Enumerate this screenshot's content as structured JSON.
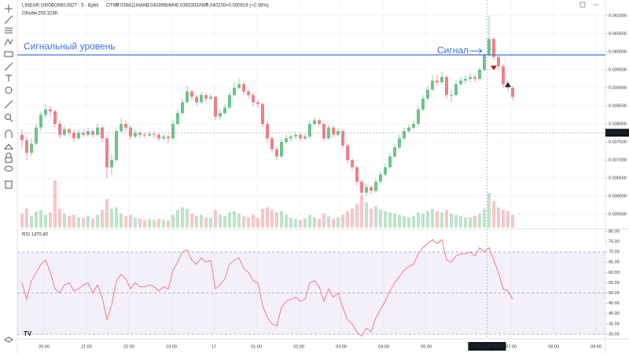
{
  "chart_data": {
    "type": "candlestick",
    "header": {
      "symbol": "LINEAR:1000BONKUSDT · 5 · Bybit",
      "ohlc": [
        {
          "name": "ОТКР",
          "value": 0.039411
        },
        {
          "name": "МАКС",
          "value": 0.040396
        },
        {
          "name": "МИН",
          "value": 0.03933,
          "label": "0.039330"
        },
        {
          "name": "ЗАКР",
          "value": 0.04023,
          "label": "0.040230"
        }
      ],
      "change": "+0.000819 (+2.08%)",
      "volume_name": "Объём",
      "volume_value": "293.324K"
    },
    "up_color": "#6cc38c",
    "down_color": "#ef8088",
    "grid": true,
    "ylim": [
      0.03509,
      0.04143
    ],
    "yticks": [
      {
        "value": 0.041,
        "label": "0.041000"
      },
      {
        "value": 0.0405,
        "label": "0.040500"
      },
      {
        "value": 0.04,
        "label": "0.040000"
      },
      {
        "value": 0.0395,
        "label": "0.039500"
      },
      {
        "value": 0.039,
        "label": "0.039000"
      },
      {
        "value": 0.0385,
        "label": "0.038500"
      },
      {
        "value": 0.038,
        "label": "0.038000"
      },
      {
        "value": 0.0375,
        "label": "0.037500"
      },
      {
        "value": 0.037,
        "label": "0.037000"
      },
      {
        "value": 0.0365,
        "label": "0.036500"
      },
      {
        "value": 0.036,
        "label": "0.036000"
      },
      {
        "value": 0.0355,
        "label": "0.035500"
      }
    ],
    "xlim": [
      22.2,
      853.3
    ],
    "xticks": [
      {
        "value": 60,
        "label": "20:00"
      },
      {
        "value": 120,
        "label": "21:00"
      },
      {
        "value": 180,
        "label": "22:00"
      },
      {
        "value": 240,
        "label": "23:00"
      },
      {
        "value": 300,
        "label": "17"
      },
      {
        "value": 360,
        "label": "01:00"
      },
      {
        "value": 420,
        "label": "02:00"
      },
      {
        "value": 480,
        "label": "03:00"
      },
      {
        "value": 540,
        "label": "04:00"
      },
      {
        "value": 600,
        "label": "05:00"
      },
      {
        "value": 720,
        "label": "07:00"
      },
      {
        "value": 780,
        "label": "08:00"
      },
      {
        "value": 840,
        "label": "09:00"
      }
    ],
    "crosshair": {
      "x": 686,
      "time_label": "17 Июн '25   06:25",
      "price": 0.037756,
      "price_label": "0.037756"
    },
    "signal_level": {
      "value": 0.03991,
      "label": "Сигнальный уровень",
      "color": "#3d6fe0"
    },
    "signal_note": "Сигнал",
    "markers": [
      {
        "index": 100,
        "price": 0.03955,
        "shape": "down",
        "color": "#b71c1c"
      },
      {
        "index": 103,
        "price": 0.03909,
        "shape": "up",
        "color": "#222222"
      }
    ],
    "candles": [
      [
        0.0377,
        0.03785,
        0.03735,
        0.03755
      ],
      [
        0.03755,
        0.03765,
        0.037,
        0.0372
      ],
      [
        0.0372,
        0.0376,
        0.0371,
        0.03745
      ],
      [
        0.03745,
        0.038,
        0.0374,
        0.0379
      ],
      [
        0.0379,
        0.03835,
        0.0378,
        0.03825
      ],
      [
        0.03825,
        0.03855,
        0.03815,
        0.0384
      ],
      [
        0.0384,
        0.0385,
        0.0382,
        0.03835
      ],
      [
        0.03835,
        0.0384,
        0.0379,
        0.038
      ],
      [
        0.038,
        0.0381,
        0.0376,
        0.0377
      ],
      [
        0.0377,
        0.03795,
        0.03765,
        0.03785
      ],
      [
        0.03785,
        0.0379,
        0.03765,
        0.03775
      ],
      [
        0.03775,
        0.03785,
        0.0375,
        0.0376
      ],
      [
        0.0376,
        0.03785,
        0.03755,
        0.03775
      ],
      [
        0.03775,
        0.03785,
        0.03762,
        0.0377
      ],
      [
        0.0377,
        0.0379,
        0.03765,
        0.0378
      ],
      [
        0.0378,
        0.03785,
        0.0376,
        0.0377
      ],
      [
        0.0377,
        0.038,
        0.03765,
        0.0379
      ],
      [
        0.0379,
        0.03795,
        0.0375,
        0.0376
      ],
      [
        0.0376,
        0.0377,
        0.0365,
        0.0368
      ],
      [
        0.0368,
        0.03715,
        0.0366,
        0.037
      ],
      [
        0.037,
        0.0379,
        0.03695,
        0.0378
      ],
      [
        0.0378,
        0.03815,
        0.03775,
        0.038
      ],
      [
        0.038,
        0.0381,
        0.0378,
        0.0379
      ],
      [
        0.0379,
        0.03795,
        0.03755,
        0.03765
      ],
      [
        0.03765,
        0.03785,
        0.0376,
        0.03775
      ],
      [
        0.03775,
        0.0378,
        0.03762,
        0.0377
      ],
      [
        0.0377,
        0.03778,
        0.0376,
        0.03768
      ],
      [
        0.03768,
        0.0378,
        0.03764,
        0.03772
      ],
      [
        0.03772,
        0.03778,
        0.03762,
        0.0377
      ],
      [
        0.0377,
        0.03775,
        0.03752,
        0.0376
      ],
      [
        0.0376,
        0.03772,
        0.03755,
        0.03765
      ],
      [
        0.03765,
        0.0377,
        0.0375,
        0.0376
      ],
      [
        0.0376,
        0.0381,
        0.03755,
        0.038
      ],
      [
        0.038,
        0.0384,
        0.03795,
        0.0383
      ],
      [
        0.0383,
        0.0387,
        0.03825,
        0.0386
      ],
      [
        0.0386,
        0.03905,
        0.03855,
        0.0389
      ],
      [
        0.0389,
        0.03895,
        0.03865,
        0.03875
      ],
      [
        0.03875,
        0.0388,
        0.0385,
        0.0386
      ],
      [
        0.0386,
        0.0389,
        0.03855,
        0.0388
      ],
      [
        0.0388,
        0.03885,
        0.0386,
        0.0387
      ],
      [
        0.0387,
        0.03885,
        0.03865,
        0.03875
      ],
      [
        0.03875,
        0.03878,
        0.0381,
        0.0382
      ],
      [
        0.0382,
        0.0384,
        0.03812,
        0.0383
      ],
      [
        0.0383,
        0.03855,
        0.03825,
        0.03845
      ],
      [
        0.03845,
        0.0389,
        0.0384,
        0.0388
      ],
      [
        0.0388,
        0.03915,
        0.03875,
        0.039
      ],
      [
        0.039,
        0.03925,
        0.03895,
        0.0391
      ],
      [
        0.0391,
        0.03915,
        0.0388,
        0.0389
      ],
      [
        0.0389,
        0.03895,
        0.0387,
        0.0388
      ],
      [
        0.0388,
        0.03885,
        0.0385,
        0.0386
      ],
      [
        0.0386,
        0.03868,
        0.03845,
        0.03855
      ],
      [
        0.03855,
        0.0386,
        0.0379,
        0.038
      ],
      [
        0.038,
        0.03808,
        0.0375,
        0.0376
      ],
      [
        0.0376,
        0.03765,
        0.0372,
        0.0373
      ],
      [
        0.0373,
        0.03738,
        0.037,
        0.0371
      ],
      [
        0.0371,
        0.0376,
        0.03705,
        0.0375
      ],
      [
        0.0375,
        0.0377,
        0.03745,
        0.0376
      ],
      [
        0.0376,
        0.03772,
        0.03752,
        0.03765
      ],
      [
        0.03765,
        0.03778,
        0.03758,
        0.0377
      ],
      [
        0.0377,
        0.03775,
        0.03752,
        0.0376
      ],
      [
        0.0376,
        0.03772,
        0.03755,
        0.03765
      ],
      [
        0.03765,
        0.0381,
        0.0376,
        0.038
      ],
      [
        0.038,
        0.03818,
        0.03795,
        0.0381
      ],
      [
        0.0381,
        0.03815,
        0.03792,
        0.038
      ],
      [
        0.038,
        0.03805,
        0.03752,
        0.0376
      ],
      [
        0.0376,
        0.03798,
        0.03755,
        0.0379
      ],
      [
        0.0379,
        0.03795,
        0.03762,
        0.0377
      ],
      [
        0.0377,
        0.03788,
        0.03765,
        0.0378
      ],
      [
        0.0378,
        0.03785,
        0.03732,
        0.0374
      ],
      [
        0.0374,
        0.03745,
        0.0369,
        0.037
      ],
      [
        0.037,
        0.03705,
        0.0367,
        0.0368
      ],
      [
        0.0368,
        0.03685,
        0.0363,
        0.0364
      ],
      [
        0.0364,
        0.03645,
        0.03595,
        0.0361
      ],
      [
        0.0361,
        0.03635,
        0.036,
        0.03625
      ],
      [
        0.03625,
        0.0363,
        0.03605,
        0.03615
      ],
      [
        0.03615,
        0.0365,
        0.0361,
        0.0364
      ],
      [
        0.0364,
        0.0367,
        0.03635,
        0.0366
      ],
      [
        0.0366,
        0.0369,
        0.03655,
        0.0368
      ],
      [
        0.0368,
        0.0372,
        0.03675,
        0.0371
      ],
      [
        0.0371,
        0.03745,
        0.03705,
        0.03735
      ],
      [
        0.03735,
        0.0377,
        0.0373,
        0.0376
      ],
      [
        0.0376,
        0.0379,
        0.03755,
        0.0378
      ],
      [
        0.0378,
        0.03798,
        0.03775,
        0.0379
      ],
      [
        0.0379,
        0.0381,
        0.03785,
        0.038
      ],
      [
        0.038,
        0.0385,
        0.03795,
        0.0384
      ],
      [
        0.0384,
        0.0388,
        0.03835,
        0.0387
      ],
      [
        0.0387,
        0.03905,
        0.03865,
        0.03895
      ],
      [
        0.03895,
        0.03935,
        0.0389,
        0.0392
      ],
      [
        0.0392,
        0.03935,
        0.03905,
        0.03915
      ],
      [
        0.03915,
        0.03945,
        0.0391,
        0.0393
      ],
      [
        0.0393,
        0.03935,
        0.0387,
        0.0388
      ],
      [
        0.0388,
        0.03895,
        0.0386,
        0.0388
      ],
      [
        0.0388,
        0.0392,
        0.03875,
        0.0391
      ],
      [
        0.0391,
        0.0393,
        0.03905,
        0.0392
      ],
      [
        0.0392,
        0.03935,
        0.0391,
        0.03925
      ],
      [
        0.03925,
        0.0394,
        0.03915,
        0.0393
      ],
      [
        0.0393,
        0.03938,
        0.03915,
        0.03925
      ],
      [
        0.03925,
        0.03958,
        0.0392,
        0.0395
      ],
      [
        0.0395,
        0.03998,
        0.03945,
        0.0399
      ],
      [
        0.0399,
        0.041,
        0.03985,
        0.04035
      ],
      [
        0.04035,
        0.0404,
        0.03975,
        0.03985
      ],
      [
        0.03985,
        0.0399,
        0.0395,
        0.0396
      ],
      [
        0.0396,
        0.03965,
        0.039,
        0.0391
      ],
      [
        0.0391,
        0.0392,
        0.0389,
        0.039
      ],
      [
        0.039,
        0.03905,
        0.03865,
        0.03875
      ]
    ],
    "volume": [
      22,
      30,
      18,
      25,
      28,
      20,
      24,
      75,
      30,
      22,
      18,
      20,
      16,
      15,
      18,
      14,
      20,
      28,
      45,
      30,
      32,
      22,
      18,
      20,
      15,
      14,
      12,
      13,
      12,
      14,
      12,
      11,
      20,
      28,
      32,
      30,
      22,
      18,
      20,
      16,
      15,
      28,
      20,
      18,
      24,
      26,
      22,
      18,
      16,
      20,
      15,
      30,
      32,
      28,
      24,
      26,
      20,
      16,
      14,
      12,
      14,
      20,
      16,
      14,
      22,
      18,
      14,
      16,
      20,
      26,
      30,
      38,
      50,
      40,
      30,
      34,
      28,
      26,
      24,
      22,
      20,
      18,
      16,
      18,
      24,
      22,
      26,
      30,
      26,
      24,
      28,
      22,
      20,
      18,
      16,
      16,
      18,
      22,
      30,
      55,
      42,
      32,
      28,
      26,
      20
    ],
    "rsi": {
      "name": "RSI 14",
      "value": 70.4,
      "label": "70.40",
      "color": "#f0707a",
      "ylim": [
        27.7,
        81.1
      ],
      "yticks": [
        {
          "value": 80,
          "label": "80.00"
        },
        {
          "value": 75,
          "label": "75.00"
        },
        {
          "value": 70,
          "label": "70.00"
        },
        {
          "value": 65,
          "label": "65.00"
        },
        {
          "value": 60,
          "label": "60.00"
        },
        {
          "value": 55,
          "label": "55.00"
        },
        {
          "value": 50,
          "label": "50.00"
        },
        {
          "value": 45,
          "label": "45.00"
        },
        {
          "value": 40,
          "label": "40.00"
        },
        {
          "value": 35,
          "label": "35.00"
        },
        {
          "value": 30,
          "label": "30.00"
        }
      ],
      "band": [
        30,
        70
      ],
      "midline": 50,
      "values": [
        55,
        47,
        56,
        60,
        64,
        66,
        60,
        52,
        50,
        54,
        55,
        51,
        52,
        54,
        55,
        50,
        54,
        48,
        37,
        44,
        56,
        59,
        57,
        52,
        55,
        53,
        53,
        54,
        53,
        51,
        53,
        52,
        61,
        65,
        70,
        71,
        66,
        64,
        67,
        65,
        66,
        52,
        54,
        57,
        64,
        66,
        67,
        62,
        60,
        56,
        55,
        44,
        38,
        35,
        34,
        43,
        46,
        47,
        48,
        46,
        47,
        55,
        56,
        53,
        46,
        52,
        48,
        50,
        43,
        37,
        35,
        31,
        29,
        33,
        31,
        38,
        42,
        46,
        51,
        55,
        58,
        61,
        63,
        64,
        69,
        72,
        74,
        76,
        74,
        76,
        66,
        65,
        68,
        69,
        69,
        70,
        68,
        72,
        70,
        72,
        66,
        60,
        52,
        51,
        47
      ]
    }
  }
}
